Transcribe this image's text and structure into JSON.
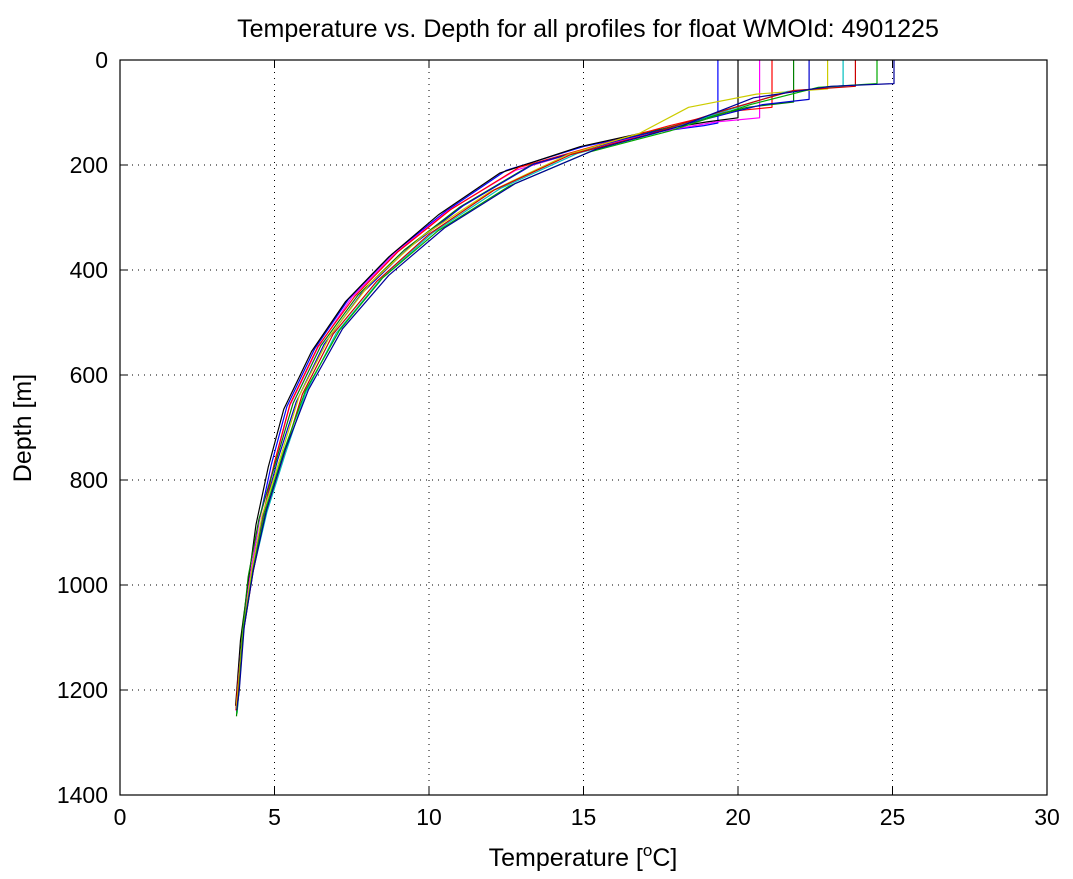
{
  "chart_data": {
    "type": "line",
    "title": "Temperature vs. Depth for all profiles for float WMOId: 4901225",
    "xlabel": "Temperature [",
    "xlabel_sup": "o",
    "xlabel_end": "C]",
    "ylabel": "Depth [m]",
    "xlim": [
      0,
      30
    ],
    "ylim": [
      0,
      1400
    ],
    "y_reversed": true,
    "grid": true,
    "legend": "none",
    "x_ticks": [
      "0",
      "5",
      "10",
      "15",
      "20",
      "25",
      "30"
    ],
    "y_ticks": [
      "0",
      "200",
      "400",
      "600",
      "800",
      "1000",
      "1200",
      "1400"
    ],
    "series": [
      {
        "color": "#0000ff",
        "x": [
          19.35,
          19.35,
          18.9,
          17.0,
          15.0,
          12.5,
          10.5,
          8.8,
          7.4,
          6.3,
          5.4,
          4.9,
          4.5,
          4.2,
          3.95,
          3.8,
          3.75
        ],
        "y": [
          0,
          120,
          125,
          140,
          165,
          210,
          290,
          370,
          455,
          550,
          660,
          770,
          880,
          990,
          1100,
          1200,
          1235
        ]
      },
      {
        "color": "#000000",
        "x": [
          20.0,
          20.0,
          19.0,
          17.2,
          14.9,
          12.3,
          10.3,
          8.7,
          7.3,
          6.2,
          5.3,
          4.8,
          4.4,
          4.15,
          3.9,
          3.78,
          3.74
        ],
        "y": [
          0,
          110,
          118,
          135,
          165,
          215,
          295,
          375,
          460,
          555,
          665,
          775,
          885,
          995,
          1105,
          1200,
          1230
        ]
      },
      {
        "color": "#ff00ff",
        "x": [
          20.7,
          20.7,
          19.3,
          17.6,
          15.4,
          12.8,
          10.6,
          8.9,
          7.5,
          6.4,
          5.5,
          5.0,
          4.5,
          4.2,
          3.95,
          3.8,
          3.76
        ],
        "y": [
          0,
          110,
          118,
          135,
          165,
          210,
          288,
          368,
          452,
          548,
          658,
          768,
          878,
          988,
          1098,
          1200,
          1240
        ]
      },
      {
        "color": "#ff0000",
        "x": [
          21.1,
          21.1,
          19.7,
          17.8,
          15.6,
          12.9,
          10.7,
          9.0,
          7.6,
          6.4,
          5.5,
          5.0,
          4.6,
          4.25,
          3.97,
          3.8,
          3.75
        ],
        "y": [
          0,
          90,
          98,
          125,
          160,
          205,
          285,
          365,
          450,
          546,
          656,
          766,
          876,
          986,
          1096,
          1200,
          1238
        ]
      },
      {
        "color": "#008000",
        "x": [
          21.8,
          21.8,
          20.3,
          18.3,
          16.0,
          13.3,
          11.0,
          9.2,
          7.7,
          6.5,
          5.6,
          5.05,
          4.5,
          4.15,
          3.95,
          3.82,
          3.77
        ],
        "y": [
          0,
          80,
          90,
          120,
          155,
          200,
          280,
          362,
          448,
          544,
          654,
          764,
          874,
          984,
          1094,
          1200,
          1250
        ]
      },
      {
        "color": "#0000cc",
        "x": [
          22.3,
          22.3,
          20.8,
          18.6,
          16.2,
          13.4,
          11.1,
          9.3,
          7.8,
          6.6,
          5.7,
          5.1,
          4.6,
          4.25,
          3.98,
          3.83,
          3.78
        ],
        "y": [
          0,
          75,
          85,
          118,
          152,
          198,
          278,
          360,
          446,
          542,
          652,
          762,
          872,
          982,
          1092,
          1200,
          1242
        ]
      },
      {
        "color": "#cccc00",
        "x": [
          22.9,
          22.9,
          20.6,
          18.4,
          16.8,
          14.5,
          12.0,
          9.8,
          8.1,
          6.8,
          5.8,
          5.2,
          4.6,
          4.25,
          3.98,
          3.82,
          3.76
        ],
        "y": [
          0,
          55,
          65,
          90,
          140,
          180,
          250,
          335,
          425,
          525,
          640,
          755,
          868,
          978,
          1088,
          1200,
          1236
        ]
      },
      {
        "color": "#00bfbf",
        "x": [
          23.4,
          23.4,
          21.6,
          19.7,
          17.3,
          14.8,
          12.3,
          10.1,
          8.4,
          7.0,
          6.0,
          5.35,
          4.75,
          4.3,
          4.0,
          3.85,
          3.79
        ],
        "y": [
          0,
          50,
          60,
          95,
          140,
          178,
          245,
          330,
          420,
          520,
          635,
          750,
          862,
          975,
          1085,
          1200,
          1244
        ]
      },
      {
        "color": "#cc0000",
        "x": [
          23.8,
          23.8,
          21.8,
          19.6,
          17.1,
          14.6,
          12.1,
          10.0,
          8.3,
          6.9,
          5.9,
          5.3,
          4.7,
          4.3,
          4.0,
          3.84,
          3.78
        ],
        "y": [
          0,
          50,
          58,
          95,
          142,
          180,
          248,
          332,
          422,
          522,
          637,
          752,
          865,
          977,
          1087,
          1200,
          1240
        ]
      },
      {
        "color": "#00aa00",
        "x": [
          24.5,
          24.5,
          22.6,
          20.4,
          17.8,
          15.2,
          12.6,
          10.3,
          8.5,
          7.1,
          6.0,
          5.3,
          4.7,
          4.3,
          4.0,
          3.85,
          3.78
        ],
        "y": [
          0,
          45,
          52,
          85,
          135,
          175,
          240,
          325,
          415,
          515,
          630,
          745,
          858,
          972,
          1082,
          1200,
          1246
        ]
      },
      {
        "color": "#000099",
        "x": [
          25.05,
          25.05,
          23.0,
          20.5,
          18.2,
          15.4,
          12.8,
          10.5,
          8.7,
          7.2,
          6.1,
          5.35,
          4.75,
          4.32,
          4.02,
          3.86,
          3.78
        ],
        "y": [
          0,
          45,
          50,
          72,
          125,
          170,
          235,
          320,
          410,
          512,
          628,
          742,
          855,
          970,
          1080,
          1200,
          1238
        ]
      }
    ]
  }
}
